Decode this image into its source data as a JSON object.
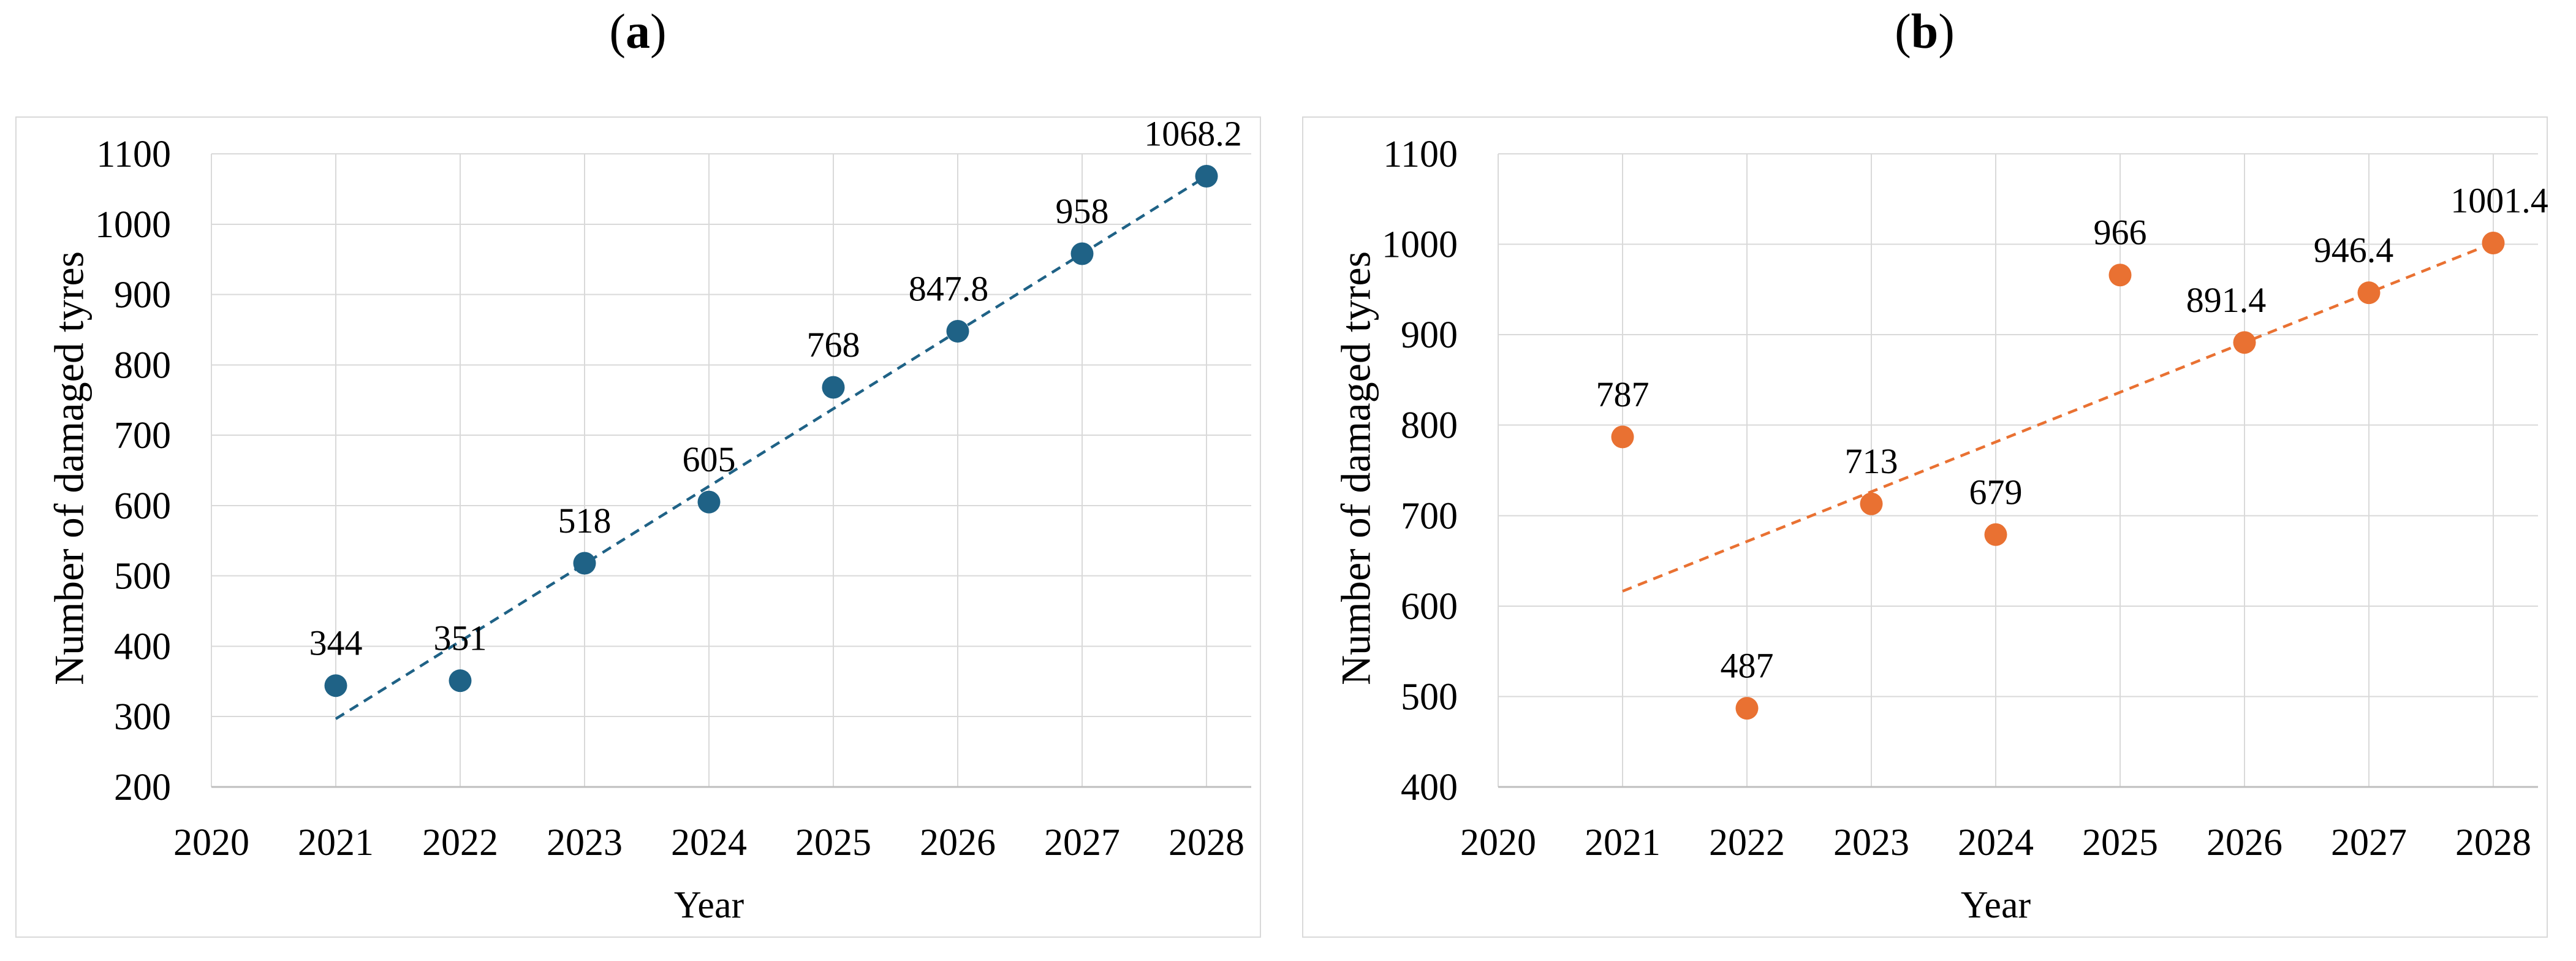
{
  "figure": {
    "panels": [
      {
        "open_paren": "(",
        "letter": "a",
        "close_paren": ")"
      },
      {
        "open_paren": "(",
        "letter": "b",
        "close_paren": ")"
      }
    ]
  },
  "style": {
    "background": "#FFFFFF",
    "grid_color": "#D9D9D9",
    "axis_line_color": "#BFBFBF",
    "chart_border_color": "#D9D9D9",
    "text_color": "#000000",
    "series_a_color": "#1F6286",
    "series_b_color": "#E97132"
  },
  "chart_data": [
    {
      "type": "scatter",
      "panel": "a",
      "xlabel": "Year",
      "ylabel": "Number of damaged tyres",
      "x": [
        2021,
        2022,
        2023,
        2024,
        2025,
        2026,
        2027,
        2028
      ],
      "y": [
        344,
        351,
        518,
        605,
        768,
        847.8,
        958,
        1068.2
      ],
      "point_labels": [
        "344",
        "351",
        "518",
        "605",
        "768",
        "847.8",
        "958",
        "1068.2"
      ],
      "label_dx": [
        0,
        0,
        0,
        0,
        0,
        -15,
        0,
        -22
      ],
      "xticks": [
        2020,
        2021,
        2022,
        2023,
        2024,
        2025,
        2026,
        2027,
        2028
      ],
      "yticks": [
        1100,
        1000,
        900,
        800,
        700,
        600,
        500,
        400,
        300,
        200
      ],
      "xlim": [
        2020,
        2028
      ],
      "ylim": [
        200,
        1100
      ],
      "grid": true,
      "legend": "none",
      "marker_color": "#1F6286",
      "trendline": {
        "type": "linear",
        "style": "dashed",
        "color": "#1F6286",
        "x1": 2021,
        "y1": 296.8,
        "x2": 2028,
        "y2": 1068.2
      }
    },
    {
      "type": "scatter",
      "panel": "b",
      "xlabel": "Year",
      "ylabel": "Number of damaged tyres",
      "x": [
        2021,
        2022,
        2023,
        2024,
        2025,
        2026,
        2027,
        2028
      ],
      "y": [
        787,
        487,
        713,
        679,
        966,
        891.4,
        946.4,
        1001.4
      ],
      "point_labels": [
        "787",
        "487",
        "713",
        "679",
        "966",
        "891.4",
        "946.4",
        "1001.4"
      ],
      "label_dx": [
        0,
        0,
        0,
        0,
        0,
        -30,
        -25,
        10
      ],
      "xticks": [
        2020,
        2021,
        2022,
        2023,
        2024,
        2025,
        2026,
        2027,
        2028
      ],
      "yticks": [
        1100,
        1000,
        900,
        800,
        700,
        600,
        500,
        400
      ],
      "xlim": [
        2020,
        2028
      ],
      "ylim": [
        400,
        1100
      ],
      "grid": true,
      "legend": "none",
      "marker_color": "#E97132",
      "trendline": {
        "type": "linear",
        "style": "dashed",
        "color": "#E97132",
        "x1": 2021,
        "y1": 616.4,
        "x2": 2028,
        "y2": 1001.4
      }
    }
  ]
}
